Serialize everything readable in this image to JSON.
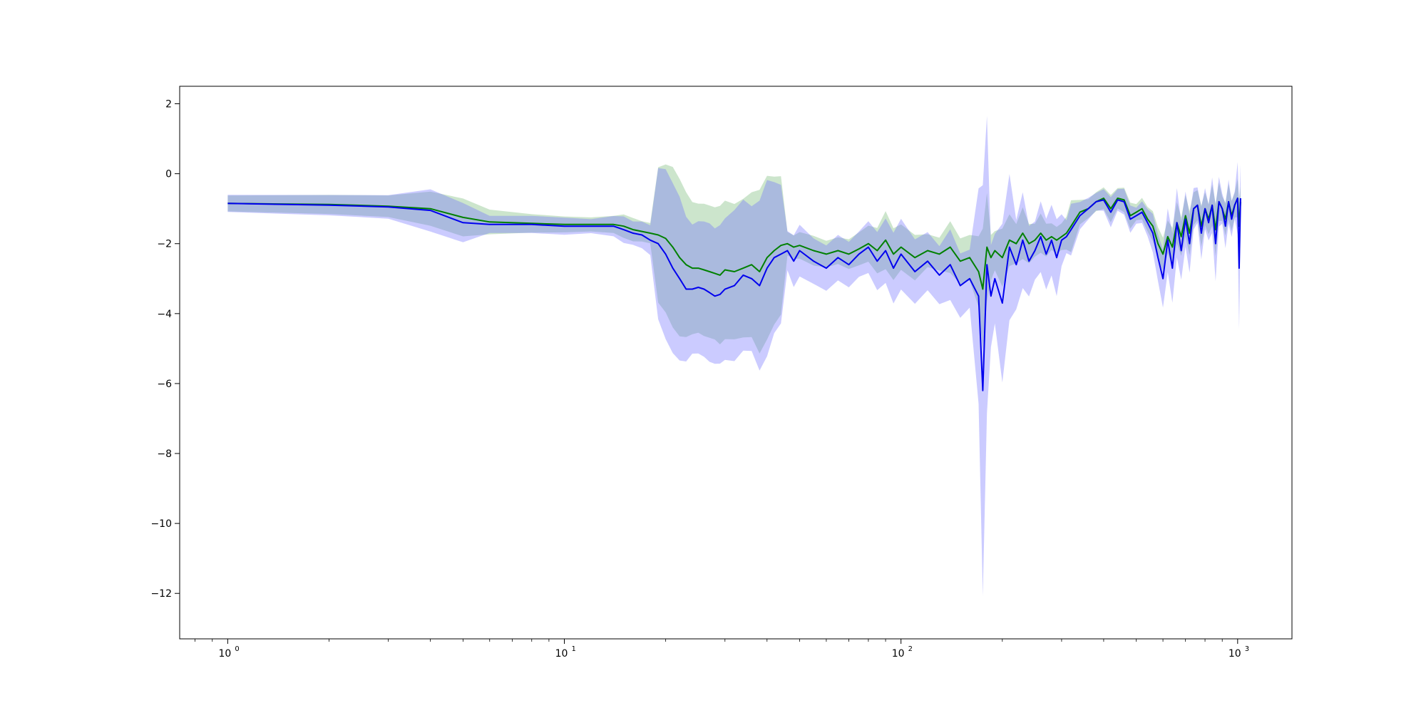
{
  "chart_data": {
    "type": "line",
    "title": "",
    "xlabel": "",
    "ylabel": "",
    "xscale": "log",
    "xlim": [
      0.72,
      1450
    ],
    "ylim": [
      -13.3,
      2.5
    ],
    "grid": false,
    "legend": "none",
    "x_ticks": [
      {
        "base": "10",
        "exp": "0",
        "value": 1
      },
      {
        "base": "10",
        "exp": "1",
        "value": 10
      },
      {
        "base": "10",
        "exp": "2",
        "value": 100
      },
      {
        "base": "10",
        "exp": "3",
        "value": 1000
      }
    ],
    "y_ticks": [
      2,
      0,
      -2,
      -4,
      -6,
      -8,
      -10,
      -12
    ],
    "y_tick_labels": [
      "2",
      "0",
      "−2",
      "−4",
      "−6",
      "−8",
      "−10",
      "−12"
    ],
    "colors": {
      "green_line": "#008000",
      "blue_line": "#0000ee",
      "green_band": "#7fbf7f",
      "blue_band": "#6a6aff"
    },
    "series": [
      {
        "color": "#008000",
        "x": [
          1,
          2,
          3,
          4,
          5,
          6,
          8,
          10,
          12,
          14,
          15,
          16,
          17,
          18,
          19,
          20,
          21,
          22,
          23,
          24,
          25,
          26,
          27,
          28,
          29,
          30,
          32,
          34,
          36,
          38,
          40,
          42,
          44,
          46,
          48,
          50,
          55,
          60,
          65,
          70,
          75,
          80,
          85,
          90,
          95,
          100,
          110,
          120,
          130,
          140,
          150,
          160,
          170,
          175,
          180,
          185,
          190,
          200,
          210,
          220,
          230,
          240,
          250,
          260,
          270,
          280,
          290,
          300,
          310,
          320,
          340,
          360,
          380,
          400,
          420,
          440,
          460,
          480,
          500,
          520,
          540,
          560,
          580,
          600,
          620,
          640,
          660,
          680,
          700,
          720,
          740,
          760,
          780,
          800,
          820,
          840,
          860,
          880,
          900,
          920,
          940,
          960,
          980,
          1000,
          1010,
          1020
        ],
        "y": [
          -0.85,
          -0.88,
          -0.93,
          -1.0,
          -1.25,
          -1.38,
          -1.42,
          -1.45,
          -1.45,
          -1.45,
          -1.5,
          -1.6,
          -1.65,
          -1.7,
          -1.75,
          -1.85,
          -2.1,
          -2.4,
          -2.6,
          -2.7,
          -2.7,
          -2.75,
          -2.8,
          -2.85,
          -2.9,
          -2.75,
          -2.8,
          -2.7,
          -2.6,
          -2.8,
          -2.4,
          -2.2,
          -2.05,
          -2.0,
          -2.1,
          -2.05,
          -2.2,
          -2.3,
          -2.2,
          -2.3,
          -2.15,
          -2.0,
          -2.2,
          -1.9,
          -2.3,
          -2.1,
          -2.4,
          -2.2,
          -2.3,
          -2.1,
          -2.5,
          -2.4,
          -2.8,
          -3.3,
          -2.1,
          -2.4,
          -2.2,
          -2.4,
          -1.9,
          -2.0,
          -1.7,
          -2.0,
          -1.9,
          -1.7,
          -1.9,
          -1.8,
          -1.9,
          -1.8,
          -1.7,
          -1.5,
          -1.1,
          -1.0,
          -0.8,
          -0.7,
          -1.0,
          -0.7,
          -0.75,
          -1.2,
          -1.1,
          -1.0,
          -1.3,
          -1.5,
          -2.0,
          -2.3,
          -1.8,
          -2.1,
          -1.4,
          -1.8,
          -1.2,
          -1.7,
          -1.0,
          -0.9,
          -1.5,
          -1.0,
          -1.3,
          -0.9,
          -1.6,
          -0.8,
          -1.0,
          -1.3,
          -0.8,
          -1.2,
          -0.9,
          -0.7,
          -1.5,
          -0.8
        ]
      },
      {
        "color": "#0000ee",
        "x": [
          1,
          2,
          3,
          4,
          5,
          6,
          8,
          10,
          12,
          14,
          15,
          16,
          17,
          18,
          19,
          20,
          21,
          22,
          23,
          24,
          25,
          26,
          27,
          28,
          29,
          30,
          32,
          34,
          36,
          38,
          40,
          42,
          44,
          46,
          48,
          50,
          55,
          60,
          65,
          70,
          75,
          80,
          85,
          90,
          95,
          100,
          110,
          120,
          130,
          140,
          150,
          160,
          170,
          175,
          180,
          185,
          190,
          200,
          210,
          220,
          230,
          240,
          250,
          260,
          270,
          280,
          290,
          300,
          310,
          320,
          340,
          360,
          380,
          400,
          420,
          440,
          460,
          480,
          500,
          520,
          540,
          560,
          580,
          600,
          620,
          640,
          660,
          680,
          700,
          720,
          740,
          760,
          780,
          800,
          820,
          840,
          860,
          880,
          900,
          920,
          940,
          960,
          980,
          1000,
          1010,
          1020
        ],
        "y": [
          -0.85,
          -0.9,
          -0.95,
          -1.05,
          -1.4,
          -1.45,
          -1.45,
          -1.5,
          -1.5,
          -1.5,
          -1.6,
          -1.7,
          -1.75,
          -1.9,
          -2.0,
          -2.3,
          -2.7,
          -3.0,
          -3.3,
          -3.3,
          -3.25,
          -3.3,
          -3.4,
          -3.5,
          -3.45,
          -3.3,
          -3.2,
          -2.9,
          -3.0,
          -3.2,
          -2.7,
          -2.4,
          -2.3,
          -2.2,
          -2.5,
          -2.2,
          -2.5,
          -2.7,
          -2.4,
          -2.6,
          -2.3,
          -2.1,
          -2.5,
          -2.2,
          -2.7,
          -2.3,
          -2.8,
          -2.5,
          -2.9,
          -2.6,
          -3.2,
          -3.0,
          -3.5,
          -6.2,
          -2.6,
          -3.5,
          -3.0,
          -3.7,
          -2.1,
          -2.6,
          -1.9,
          -2.5,
          -2.2,
          -1.8,
          -2.3,
          -1.9,
          -2.4,
          -1.9,
          -1.8,
          -1.6,
          -1.2,
          -1.0,
          -0.8,
          -0.75,
          -1.1,
          -0.75,
          -0.8,
          -1.3,
          -1.2,
          -1.1,
          -1.4,
          -1.7,
          -2.4,
          -3.0,
          -1.9,
          -2.7,
          -1.4,
          -2.2,
          -1.3,
          -2.0,
          -1.0,
          -0.9,
          -1.7,
          -1.0,
          -1.4,
          -0.9,
          -2.0,
          -0.8,
          -1.0,
          -1.5,
          -0.8,
          -1.3,
          -0.9,
          -0.7,
          -2.7,
          -0.7
        ]
      }
    ]
  }
}
